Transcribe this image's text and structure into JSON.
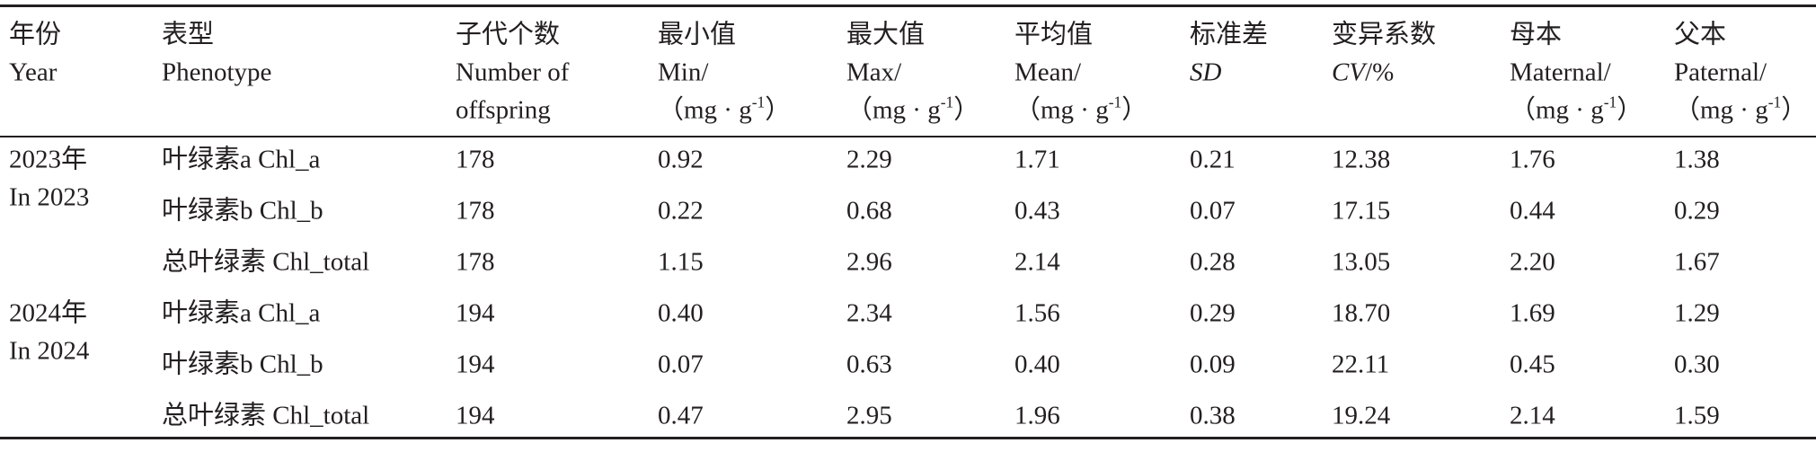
{
  "table": {
    "headers": [
      {
        "lines": [
          "年份",
          "Year"
        ]
      },
      {
        "lines": [
          "表型",
          "Phenotype"
        ]
      },
      {
        "lines": [
          "子代个数",
          "Number of",
          "offspring"
        ]
      },
      {
        "lines": [
          "最小值",
          "Min/",
          {
            "pre": "（mg · g",
            "sup": "-1",
            "post": "）"
          }
        ]
      },
      {
        "lines": [
          "最大值",
          "Max/",
          {
            "pre": "（mg · g",
            "sup": "-1",
            "post": "）"
          }
        ]
      },
      {
        "lines": [
          "平均值",
          "Mean/",
          {
            "pre": "（mg · g",
            "sup": "-1",
            "post": "）"
          }
        ]
      },
      {
        "lines": [
          "标准差",
          {
            "it": "SD"
          }
        ]
      },
      {
        "lines": [
          "变异系数",
          {
            "it": "CV",
            "post": "/%"
          }
        ]
      },
      {
        "lines": [
          "母本",
          "Maternal/",
          {
            "pre": "（mg · g",
            "sup": "-1",
            "post": "）"
          }
        ]
      },
      {
        "lines": [
          "父本",
          "Paternal/",
          {
            "pre": "（mg · g",
            "sup": "-1",
            "post": "）"
          }
        ]
      }
    ],
    "groups": [
      {
        "year": [
          "2023年",
          "In 2023"
        ],
        "rows": [
          {
            "phenotype": "叶绿素a Chl_a",
            "values": [
              "178",
              "0.92",
              "2.29",
              "1.71",
              "0.21",
              "12.38",
              "1.76",
              "1.38"
            ]
          },
          {
            "phenotype": "叶绿素b Chl_b",
            "values": [
              "178",
              "0.22",
              "0.68",
              "0.43",
              "0.07",
              "17.15",
              "0.44",
              "0.29"
            ]
          },
          {
            "phenotype": "总叶绿素 Chl_total",
            "values": [
              "178",
              "1.15",
              "2.96",
              "2.14",
              "0.28",
              "13.05",
              "2.20",
              "1.67"
            ]
          }
        ]
      },
      {
        "year": [
          "2024年",
          "In 2024"
        ],
        "rows": [
          {
            "phenotype": "叶绿素a Chl_a",
            "values": [
              "194",
              "0.40",
              "2.34",
              "1.56",
              "0.29",
              "18.70",
              "1.69",
              "1.29"
            ]
          },
          {
            "phenotype": "叶绿素b Chl_b",
            "values": [
              "194",
              "0.07",
              "0.63",
              "0.40",
              "0.09",
              "22.11",
              "0.45",
              "0.30"
            ]
          },
          {
            "phenotype": "总叶绿素 Chl_total",
            "values": [
              "194",
              "0.47",
              "2.95",
              "1.96",
              "0.38",
              "19.24",
              "2.14",
              "1.59"
            ]
          }
        ]
      }
    ]
  }
}
